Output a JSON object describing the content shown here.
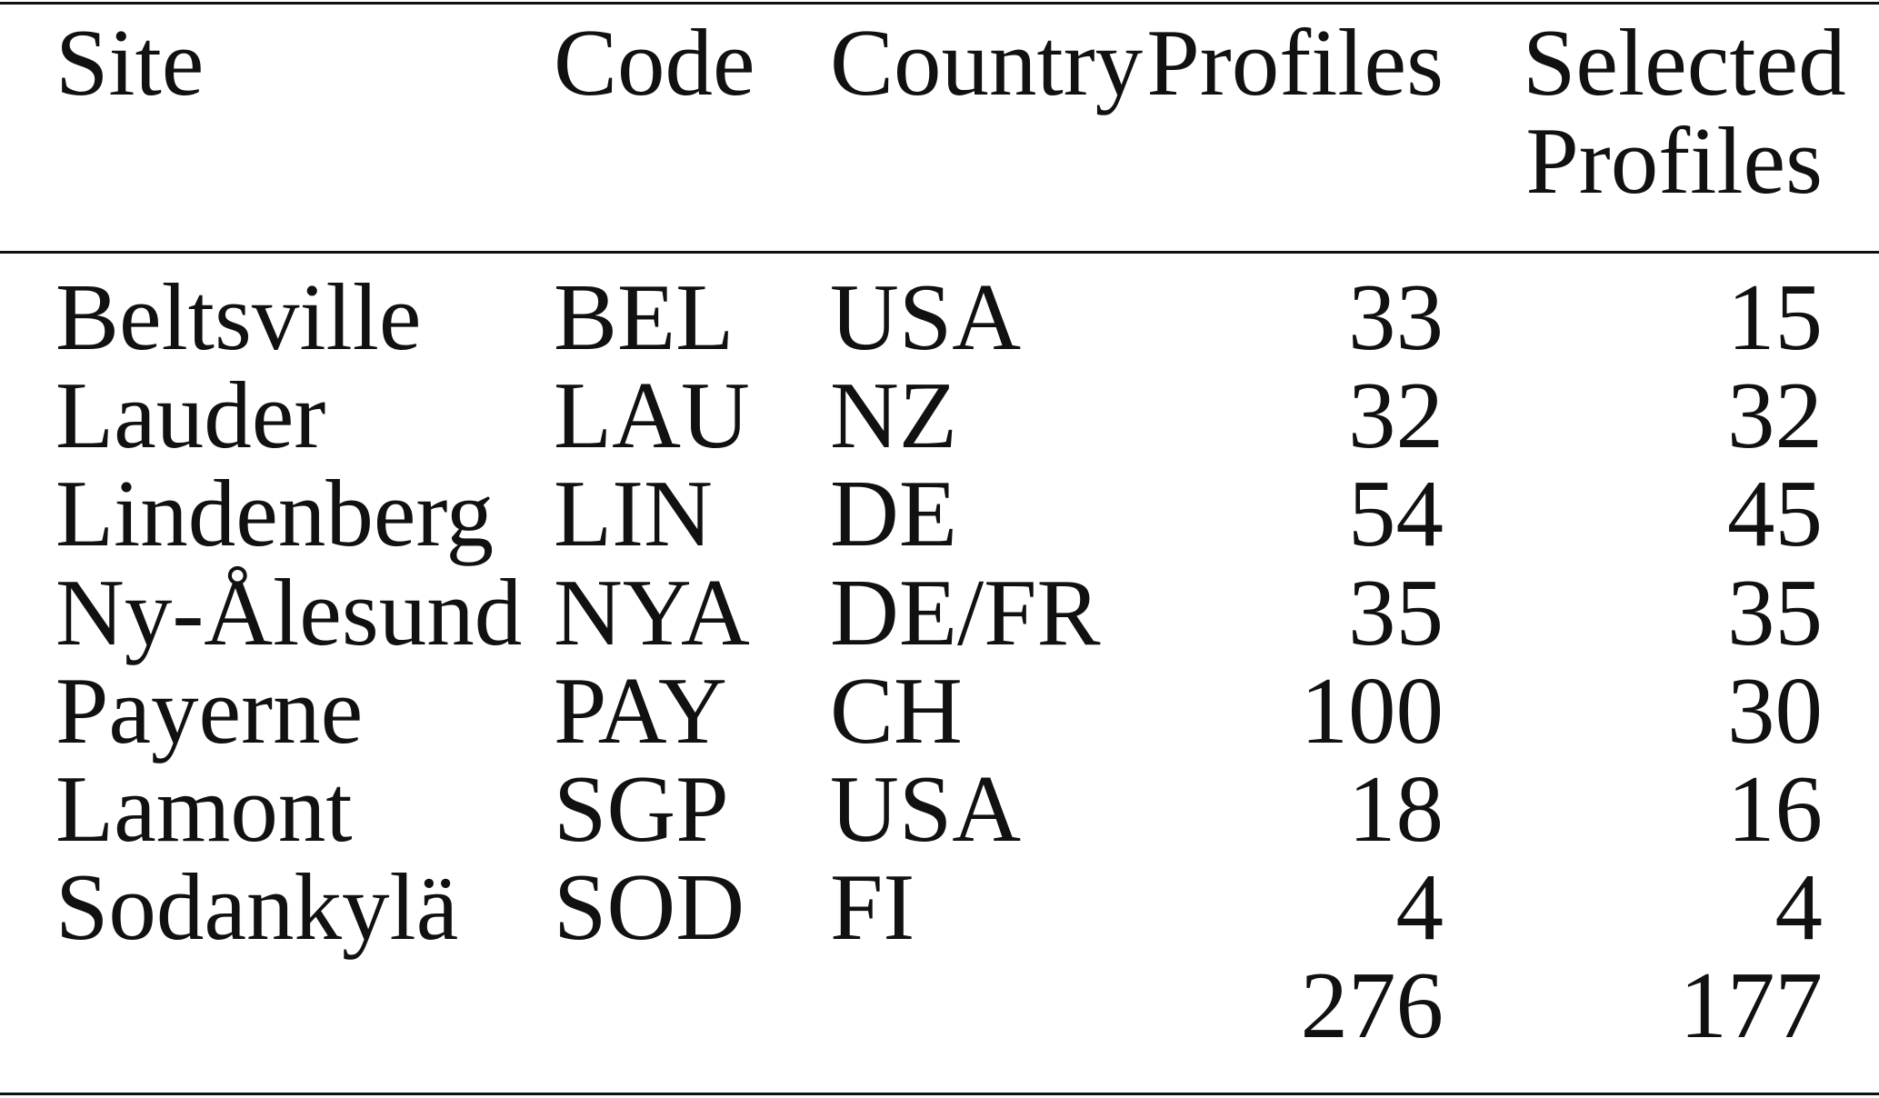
{
  "table": {
    "header": [
      "Site",
      "Code",
      "Country",
      "Profiles",
      "Selected Profiles"
    ],
    "rows": [
      [
        "Beltsville",
        "BEL",
        "USA",
        33,
        15
      ],
      [
        "Lauder",
        "LAU",
        "NZ",
        32,
        32
      ],
      [
        "Lindenberg",
        "LIN",
        "DE",
        54,
        45
      ],
      [
        "Ny-Ålesund",
        "NYA",
        "DE/FR",
        35,
        35
      ],
      [
        "Payerne",
        "PAY",
        "CH",
        100,
        30
      ],
      [
        "Lamont",
        "SGP",
        "USA",
        18,
        16
      ],
      [
        "Sodankylä",
        "SOD",
        "FI",
        4,
        4
      ]
    ],
    "totals": {
      "profiles": 276,
      "selected_profiles": 177
    }
  }
}
